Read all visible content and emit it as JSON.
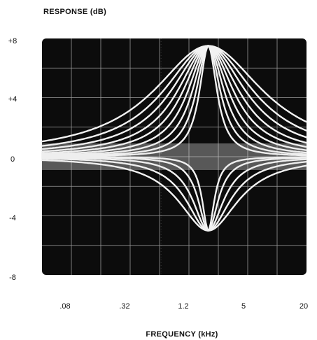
{
  "chart_data": {
    "type": "line",
    "ylabel": "RESPONSE (dB)",
    "xlabel": "FREQUENCY (kHz)",
    "y_ticks": [
      "+8",
      "+4",
      "0",
      "-4",
      "-8"
    ],
    "x_ticks": [
      ".08",
      ".32",
      "1.2",
      "5",
      "20"
    ],
    "ylim": [
      -8,
      8
    ],
    "xlim_khz": [
      0.02,
      28
    ],
    "x_scale": "log",
    "grid": true,
    "background": "#0c0c0c",
    "curve_color": "#f2f2f2",
    "center_khz": 1.9,
    "series": [
      {
        "gain_db": 7.5,
        "width": 1.0
      },
      {
        "gain_db": 7.5,
        "width": 0.82
      },
      {
        "gain_db": 7.5,
        "width": 0.68
      },
      {
        "gain_db": 7.5,
        "width": 0.56
      },
      {
        "gain_db": 7.5,
        "width": 0.46
      },
      {
        "gain_db": 7.5,
        "width": 0.37
      },
      {
        "gain_db": 7.5,
        "width": 0.29
      },
      {
        "gain_db": 7.5,
        "width": 0.22
      },
      {
        "gain_db": 7.5,
        "width": 0.16
      },
      {
        "gain_db": -5.0,
        "width": 0.55
      },
      {
        "gain_db": -5.0,
        "width": 0.4
      },
      {
        "gain_db": -5.0,
        "width": 0.28
      },
      {
        "gain_db": -5.0,
        "width": 0.18
      },
      {
        "gain_db": -5.0,
        "width": 0.11
      }
    ]
  }
}
